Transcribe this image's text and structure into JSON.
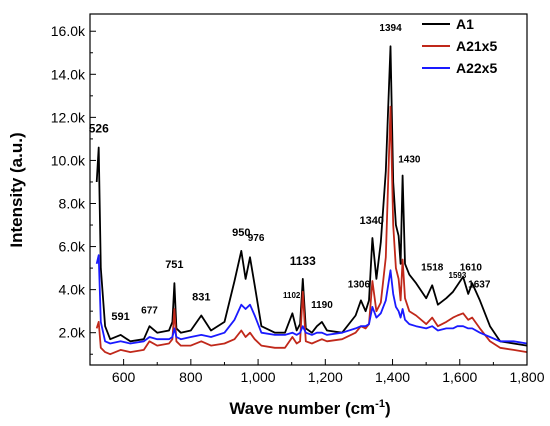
{
  "chart_data": {
    "type": "line",
    "xlabel": "Wave number (cm",
    "xlabel_sup": "-1",
    "xlabel_end": ")",
    "ylabel": "Intensity (a.u.)",
    "xlim": [
      500,
      1800
    ],
    "ylim": [
      500,
      16800
    ],
    "x_ticks": [
      600,
      800,
      1000,
      1200,
      1400,
      1600,
      1800
    ],
    "x_tick_labels": [
      "600",
      "800",
      "1,000",
      "1,200",
      "1,400",
      "1,600",
      "1,800"
    ],
    "y_ticks": [
      2000,
      4000,
      6000,
      8000,
      10000,
      12000,
      14000,
      16000
    ],
    "y_tick_labels": [
      "2.0k",
      "4.0k",
      "6.0k",
      "8.0k",
      "10.0k",
      "12.0k",
      "14.0k",
      "16.0k"
    ],
    "legend_position": "top-right",
    "grid": false,
    "series": [
      {
        "name": "A1",
        "color": "#000000",
        "x": [
          520,
          526,
          532,
          545,
          560,
          591,
          620,
          660,
          677,
          700,
          735,
          745,
          751,
          757,
          770,
          800,
          831,
          860,
          900,
          930,
          950,
          963,
          976,
          990,
          1010,
          1050,
          1080,
          1102,
          1115,
          1125,
          1133,
          1142,
          1160,
          1175,
          1190,
          1205,
          1250,
          1290,
          1306,
          1320,
          1330,
          1340,
          1352,
          1365,
          1380,
          1394,
          1402,
          1410,
          1418,
          1424,
          1430,
          1437,
          1450,
          1470,
          1500,
          1518,
          1535,
          1560,
          1580,
          1593,
          1610,
          1625,
          1637,
          1660,
          1690,
          1720,
          1760,
          1800
        ],
        "y": [
          9000,
          10600,
          5000,
          2300,
          1700,
          1900,
          1600,
          1700,
          2300,
          2000,
          2100,
          2500,
          4300,
          2200,
          2000,
          2100,
          2800,
          2100,
          2500,
          4400,
          5800,
          4500,
          5500,
          4200,
          2300,
          2000,
          2000,
          2900,
          2100,
          2400,
          4500,
          2200,
          2000,
          2300,
          2500,
          2100,
          2000,
          2800,
          3500,
          3000,
          3500,
          6400,
          4500,
          6200,
          9500,
          15300,
          9000,
          7000,
          6500,
          5200,
          9300,
          5200,
          4700,
          4300,
          3600,
          4200,
          3300,
          3600,
          3900,
          4200,
          4600,
          3800,
          4300,
          3500,
          2300,
          1600,
          1500,
          1400
        ]
      },
      {
        "name": "A21x5",
        "color": "#c0281a",
        "x": [
          520,
          526,
          532,
          545,
          560,
          591,
          620,
          660,
          677,
          700,
          735,
          745,
          751,
          757,
          770,
          800,
          831,
          860,
          900,
          930,
          950,
          963,
          976,
          990,
          1010,
          1050,
          1080,
          1102,
          1115,
          1125,
          1133,
          1142,
          1160,
          1175,
          1190,
          1205,
          1250,
          1290,
          1306,
          1320,
          1330,
          1340,
          1352,
          1365,
          1380,
          1394,
          1402,
          1410,
          1418,
          1424,
          1430,
          1437,
          1450,
          1470,
          1500,
          1518,
          1535,
          1560,
          1580,
          1593,
          1610,
          1625,
          1637,
          1660,
          1690,
          1720,
          1760,
          1800
        ],
        "y": [
          2200,
          2500,
          1300,
          1100,
          1000,
          1200,
          1100,
          1200,
          1600,
          1400,
          1500,
          1700,
          3100,
          1600,
          1400,
          1400,
          1600,
          1400,
          1500,
          1700,
          2100,
          1800,
          2000,
          1700,
          1400,
          1300,
          1300,
          1800,
          1500,
          1600,
          3900,
          1600,
          1500,
          1600,
          1700,
          1600,
          1700,
          2000,
          2300,
          2200,
          2400,
          4400,
          3000,
          3400,
          5500,
          12500,
          7000,
          5000,
          4500,
          3500,
          5400,
          3600,
          3000,
          2800,
          2400,
          2700,
          2300,
          2500,
          2700,
          2800,
          2900,
          2600,
          2700,
          2200,
          1600,
          1300,
          1200,
          1100
        ]
      },
      {
        "name": "A22x5",
        "color": "#1a1aff",
        "x": [
          520,
          526,
          532,
          545,
          560,
          591,
          620,
          660,
          677,
          700,
          735,
          745,
          751,
          757,
          770,
          800,
          831,
          860,
          900,
          930,
          950,
          963,
          976,
          990,
          1010,
          1050,
          1080,
          1102,
          1115,
          1125,
          1133,
          1142,
          1160,
          1175,
          1190,
          1205,
          1250,
          1290,
          1306,
          1320,
          1330,
          1340,
          1352,
          1365,
          1380,
          1394,
          1402,
          1410,
          1418,
          1424,
          1430,
          1437,
          1450,
          1470,
          1500,
          1518,
          1535,
          1560,
          1580,
          1593,
          1610,
          1625,
          1637,
          1660,
          1690,
          1720,
          1760,
          1800
        ],
        "y": [
          5200,
          5600,
          2500,
          1600,
          1500,
          1600,
          1500,
          1600,
          1800,
          1700,
          1700,
          1800,
          2200,
          1800,
          1700,
          1800,
          1900,
          1800,
          2000,
          2600,
          3300,
          3100,
          3300,
          2800,
          2000,
          1900,
          1900,
          2000,
          1900,
          2000,
          2300,
          2000,
          1900,
          2000,
          2000,
          1900,
          2000,
          2200,
          2300,
          2300,
          2400,
          3200,
          2700,
          2900,
          3500,
          4900,
          3800,
          3200,
          3000,
          2700,
          3100,
          2600,
          2400,
          2300,
          2200,
          2300,
          2100,
          2200,
          2200,
          2300,
          2300,
          2200,
          2200,
          2000,
          1800,
          1600,
          1600,
          1500
        ]
      }
    ],
    "annotations": [
      {
        "text": "526",
        "x": 526,
        "y": 11300,
        "size": "lg"
      },
      {
        "text": "591",
        "x": 591,
        "y": 2600,
        "size": "md"
      },
      {
        "text": "677",
        "x": 677,
        "y": 2900,
        "size": "sm"
      },
      {
        "text": "751",
        "x": 751,
        "y": 5000,
        "size": "md"
      },
      {
        "text": "831",
        "x": 831,
        "y": 3500,
        "size": "md"
      },
      {
        "text": "950",
        "x": 950,
        "y": 6500,
        "size": "md"
      },
      {
        "text": "976",
        "x": 994,
        "y": 6250,
        "size": "sm"
      },
      {
        "text": "1102",
        "x": 1100,
        "y": 3600,
        "size": "xs"
      },
      {
        "text": "1133",
        "x": 1133,
        "y": 5150,
        "size": "lg"
      },
      {
        "text": "1190",
        "x": 1190,
        "y": 3150,
        "size": "sm"
      },
      {
        "text": "1306",
        "x": 1300,
        "y": 4100,
        "size": "sm"
      },
      {
        "text": "1340",
        "x": 1338,
        "y": 7050,
        "size": "md"
      },
      {
        "text": "1394",
        "x": 1394,
        "y": 16000,
        "size": "sm"
      },
      {
        "text": "1430",
        "x": 1450,
        "y": 9900,
        "size": "sm"
      },
      {
        "text": "1518",
        "x": 1518,
        "y": 4900,
        "size": "sm"
      },
      {
        "text": "1593",
        "x": 1593,
        "y": 4550,
        "size": "xs"
      },
      {
        "text": "1610",
        "x": 1633,
        "y": 4900,
        "size": "sm"
      },
      {
        "text": "1637",
        "x": 1658,
        "y": 4100,
        "size": "sm"
      }
    ]
  }
}
